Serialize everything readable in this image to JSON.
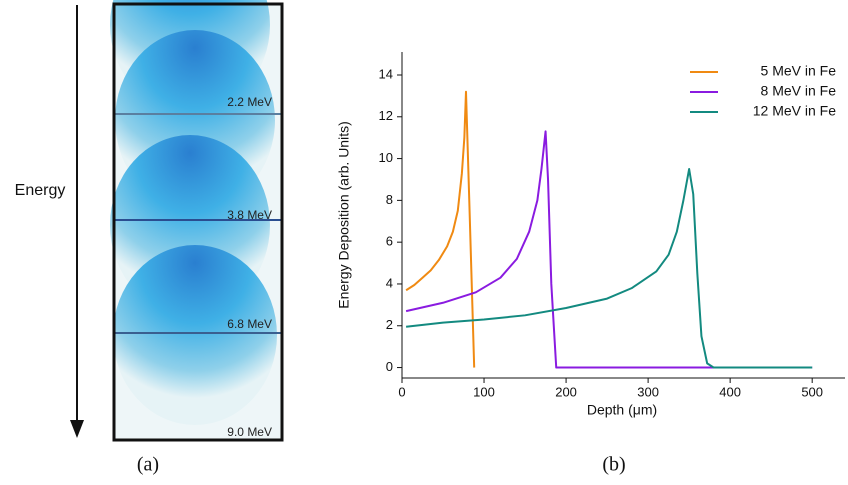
{
  "panel_a": {
    "axis_label": "Energy",
    "energies": [
      "2.2 MeV",
      "3.8 MeV",
      "6.8 MeV",
      "9.0 MeV"
    ],
    "caption": "(a)"
  },
  "chart_data": {
    "type": "line",
    "caption": "(b)",
    "x_label": "Depth (μm)",
    "y_label": "Energy Deposition (arb. Units)",
    "xlim": [
      0,
      540
    ],
    "ylim": [
      -0.5,
      15.1
    ],
    "xticks": [
      0,
      100,
      200,
      300,
      400,
      500
    ],
    "yticks": [
      0,
      2,
      4,
      6,
      8,
      10,
      12,
      14
    ],
    "legend": "top-right",
    "series": [
      {
        "name": "5 MeV in Fe",
        "color": "#f08a12",
        "x": [
          5,
          15,
          25,
          35,
          45,
          55,
          62,
          68,
          73,
          76,
          78,
          82,
          88
        ],
        "values": [
          3.7,
          3.95,
          4.3,
          4.65,
          5.15,
          5.8,
          6.5,
          7.5,
          9.3,
          11,
          13.2,
          8,
          0
        ]
      },
      {
        "name": "8 MeV in Fe",
        "color": "#8a1be0",
        "x": [
          5,
          50,
          90,
          120,
          140,
          155,
          165,
          170,
          175,
          178,
          182,
          188,
          500
        ],
        "values": [
          2.7,
          3.1,
          3.6,
          4.3,
          5.2,
          6.5,
          8,
          9.5,
          11.3,
          9,
          4,
          0,
          0
        ]
      },
      {
        "name": "12 MeV in Fe",
        "color": "#138a80",
        "x": [
          5,
          50,
          100,
          150,
          200,
          250,
          280,
          310,
          325,
          335,
          343,
          350,
          355,
          360,
          365,
          372,
          380,
          500
        ],
        "values": [
          1.95,
          2.15,
          2.3,
          2.5,
          2.85,
          3.3,
          3.8,
          4.6,
          5.4,
          6.5,
          8,
          9.5,
          8.3,
          4.5,
          1.5,
          0.2,
          0,
          0
        ]
      }
    ]
  }
}
